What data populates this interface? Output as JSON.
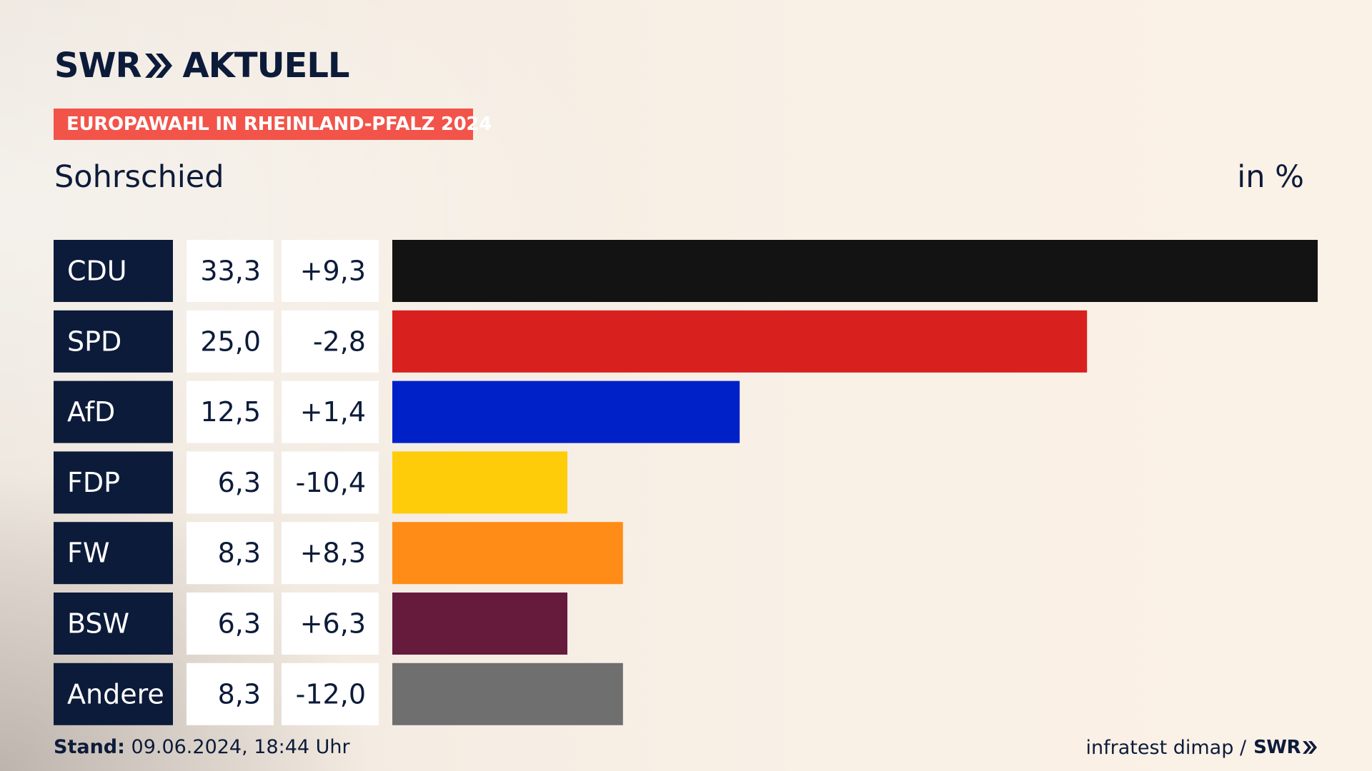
{
  "header": {
    "brand": "SWR",
    "brand_suffix": "AKTUELL",
    "badge": "EUROPAWAHL IN RHEINLAND-PFALZ 2024",
    "subtitle": "Sohrschied",
    "unit": "in %"
  },
  "footer": {
    "stand_label": "Stand:",
    "stand_value": "09.06.2024, 18:44 Uhr",
    "source": "infratest dimap /",
    "source_brand": "SWR"
  },
  "colors": {
    "navy": "#0d1b3a",
    "badge": "#f2544a",
    "cell_bg": "#ffffff"
  },
  "chart_data": {
    "type": "bar",
    "orientation": "horizontal",
    "title": "Sohrschied",
    "unit": "in %",
    "categories": [
      "CDU",
      "SPD",
      "AfD",
      "FDP",
      "FW",
      "BSW",
      "Andere"
    ],
    "values": [
      33.3,
      25.0,
      12.5,
      6.3,
      8.3,
      6.3,
      8.3
    ],
    "value_labels": [
      "33,3",
      "25,0",
      "12,5",
      "6,3",
      "8,3",
      "6,3",
      "8,3"
    ],
    "change_labels": [
      "+9,3",
      "-2,8",
      "+1,4",
      "-10,4",
      "+8,3",
      "+6,3",
      "-12,0"
    ],
    "bar_colors": [
      "#131313",
      "#d8201f",
      "#0021c8",
      "#ffcc0a",
      "#ff8c17",
      "#661a3c",
      "#6f6f6f"
    ],
    "xlim": [
      0,
      33.3
    ]
  }
}
